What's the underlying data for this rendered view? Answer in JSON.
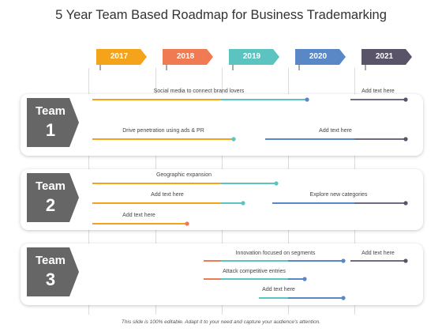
{
  "title": "5 Year Team Based Roadmap for Business Trademarking",
  "years": [
    "2017",
    "2018",
    "2019",
    "2020",
    "2021"
  ],
  "colors": {
    "year_flags": [
      "#f5a31a",
      "#f07b52",
      "#5bc4c0",
      "#5a88c6",
      "#5a5468"
    ],
    "segments": {
      "orange": "#f5a31a",
      "teal": "#5bc4c0",
      "blue": "#5a88c6",
      "gray": "#6d6b7d",
      "salmon": "#f07b52"
    },
    "badge": "#666666"
  },
  "teams": [
    {
      "name": "Team",
      "number": "1"
    },
    {
      "name": "Team",
      "number": "2"
    },
    {
      "name": "Team",
      "number": "3"
    }
  ],
  "tasks": [
    {
      "label": "Social media to connect brand lovers"
    },
    {
      "label": "Add text here"
    },
    {
      "label": "Drive penetration using ads & PR"
    },
    {
      "label": "Add text here"
    },
    {
      "label": "Geographic expansion"
    },
    {
      "label": "Add text here"
    },
    {
      "label": "Explore new categories"
    },
    {
      "label": "Add text here"
    },
    {
      "label": "Innovation focused on segments"
    },
    {
      "label": "Add text here"
    },
    {
      "label": "Attack competitive entries"
    },
    {
      "label": "Add text here"
    }
  ],
  "footer": "This slide is 100% editable. Adapt it to your need and capture your audience's attention."
}
